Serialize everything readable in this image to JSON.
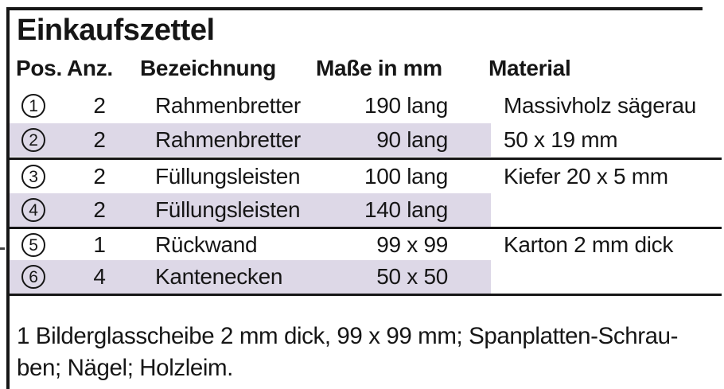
{
  "title": "Einkaufszettel",
  "colors": {
    "highlight": "#ddd8e7",
    "text": "#161616",
    "border": "#161616"
  },
  "table": {
    "headers": {
      "pos": "Pos.",
      "anz": "Anz.",
      "bezeichnung": "Bezeichnung",
      "masse": "Maße in mm",
      "material": "Material"
    },
    "rows": [
      {
        "pos": "1",
        "anz": "2",
        "bezeichnung": "Rahmenbretter",
        "masse": "190 lang",
        "material": "Massivholz sägerau",
        "highlight": false
      },
      {
        "pos": "2",
        "anz": "2",
        "bezeichnung": "Rahmenbretter",
        "masse": "90 lang",
        "material": "50 x 19 mm",
        "highlight": true
      },
      {
        "pos": "3",
        "anz": "2",
        "bezeichnung": "Füllungsleisten",
        "masse": "100 lang",
        "material": "Kiefer 20 x 5 mm",
        "highlight": false
      },
      {
        "pos": "4",
        "anz": "2",
        "bezeichnung": "Füllungsleisten",
        "masse": "140 lang",
        "material": "",
        "highlight": true
      },
      {
        "pos": "5",
        "anz": "1",
        "bezeichnung": "Rückwand",
        "masse": "99 x 99",
        "material": "Karton 2 mm dick",
        "highlight": false
      },
      {
        "pos": "6",
        "anz": "4",
        "bezeichnung": "Kantenecken",
        "masse": "50 x 50",
        "material": "",
        "highlight": true
      }
    ]
  },
  "footer": {
    "line1": "1 Bilderglasscheibe 2 mm dick, 99 x 99 mm; Spanplatten-Schrau-",
    "line2": "ben; Nägel; Holzleim."
  }
}
